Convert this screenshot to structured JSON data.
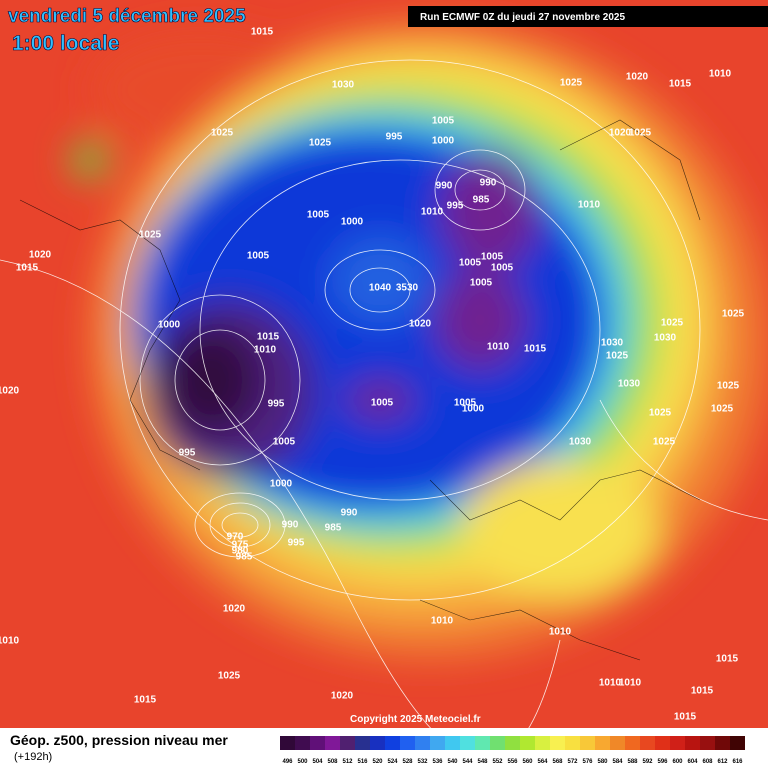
{
  "header": {
    "date": "vendredi 5 décembre 2025",
    "time": "1:00 locale",
    "run": "Run ECMWF 0Z du jeudi 27 novembre 2025"
  },
  "copyright": "Copyright 2025 Meteociel.fr",
  "legend": {
    "title": "Géop. z500, pression niveau mer",
    "lead": "(+192h)",
    "values": [
      496,
      500,
      504,
      508,
      512,
      516,
      520,
      524,
      528,
      532,
      536,
      540,
      544,
      548,
      552,
      556,
      560,
      564,
      568,
      572,
      576,
      580,
      584,
      588,
      592,
      596,
      600,
      604,
      608,
      612,
      616
    ]
  },
  "isobars": [
    1015,
    1030,
    1025,
    1020,
    1015,
    1010,
    1025,
    1025,
    995,
    1005,
    1000,
    1020,
    1025,
    990,
    990,
    985,
    995,
    1010,
    1005,
    1000,
    1010,
    1025,
    1020,
    1015,
    1005,
    1005,
    1005,
    1005,
    1005,
    1040,
    3530,
    1000,
    1015,
    1010,
    1020,
    1010,
    1015,
    1030,
    1025,
    1030,
    1025,
    1025,
    1030,
    1025,
    995,
    1005,
    1005,
    1000,
    1025,
    1025,
    1005,
    1030,
    1025,
    995,
    1000,
    990,
    990,
    985,
    995,
    970,
    975,
    980,
    985,
    1020,
    1010,
    1010,
    1010,
    1025,
    1015,
    1020,
    1015,
    1010,
    1010,
    1015,
    1015,
    1020
  ]
}
